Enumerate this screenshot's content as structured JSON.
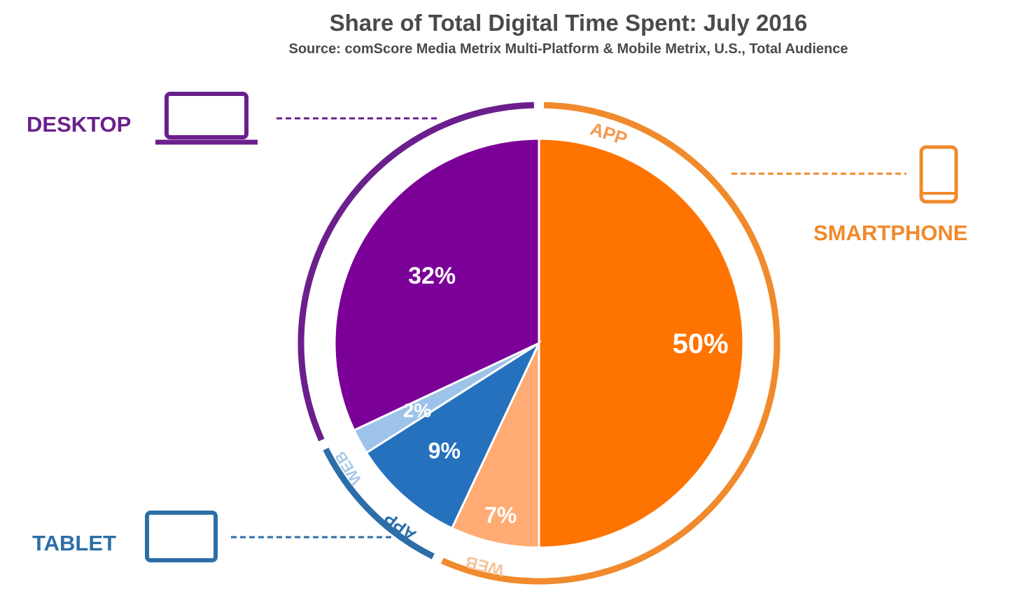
{
  "chart_data": {
    "type": "pie",
    "title": "Share of Total Digital Time Spent: July 2016",
    "subtitle": "Source: comScore Media Metrix Multi-Platform & Mobile Metrix, U.S., Total Audience",
    "slices": [
      {
        "platform": "SMARTPHONE",
        "subtype": "APP",
        "value": 50,
        "label": "50%",
        "color": "#ff7300"
      },
      {
        "platform": "SMARTPHONE",
        "subtype": "WEB",
        "value": 7,
        "label": "7%",
        "color": "#ffab73"
      },
      {
        "platform": "TABLET",
        "subtype": "APP",
        "value": 9,
        "label": "9%",
        "color": "#2671be"
      },
      {
        "platform": "TABLET",
        "subtype": "WEB",
        "value": 2,
        "label": "2%",
        "color": "#9dc3ea"
      },
      {
        "platform": "DESKTOP",
        "subtype": "",
        "value": 32,
        "label": "32%",
        "color": "#7a0098"
      }
    ],
    "groups": [
      {
        "name": "DESKTOP",
        "color": "#6b1f8c",
        "icon": "laptop-icon"
      },
      {
        "name": "SMARTPHONE",
        "color": "#f08a2c",
        "icon": "smartphone-icon"
      },
      {
        "name": "TABLET",
        "color": "#2c6ea8",
        "icon": "tablet-icon"
      }
    ],
    "ring_labels": {
      "smartphone_app": "APP",
      "smartphone_web": "WEB",
      "tablet_app": "APP",
      "tablet_web": "WEB"
    }
  }
}
